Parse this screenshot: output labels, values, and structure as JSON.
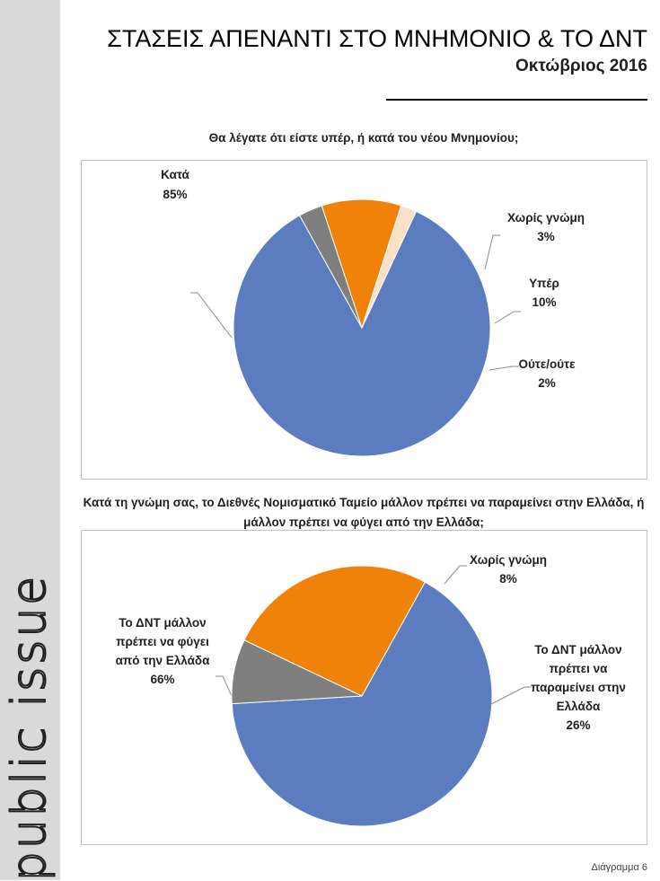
{
  "brand": {
    "text": "public issue"
  },
  "header": {
    "title": "ΣΤΑΣΕΙΣ ΑΠΕΝΑΝΤΙ ΣΤΟ ΜΝΗΜΟΝΙΟ & ΤΟ ΔΝΤ",
    "subtitle": "Οκτώβριος 2016"
  },
  "footer": {
    "text": "Διάγραμμα 6"
  },
  "chart_data": [
    {
      "type": "pie",
      "title": "Θα λέγατε ότι είστε υπέρ, ή κατά του νέου Μνημονίου;",
      "slices": [
        {
          "label": "Κατά",
          "value": 85,
          "display": "85%",
          "color": "#5b7cbe"
        },
        {
          "label": "Χωρίς γνώμη",
          "value": 3,
          "display": "3%",
          "color": "#7f7f7f"
        },
        {
          "label": "Υπέρ",
          "value": 10,
          "display": "10%",
          "color": "#f0820a"
        },
        {
          "label": "Ούτε/ούτε",
          "value": 2,
          "display": "2%",
          "color": "#fbe0c9"
        }
      ]
    },
    {
      "type": "pie",
      "title": "Κατά τη γνώμη σας, το Διεθνές Νομισματικό Ταμείο μάλλον πρέπει να παραμείνει στην Ελλάδα, ή μάλλον πρέπει να φύγει από την Ελλάδα;",
      "slices": [
        {
          "label": "Το ΔΝΤ μάλλον πρέπει να φύγει από την Ελλάδα",
          "value": 66,
          "display": "66%",
          "color": "#5b7cbe"
        },
        {
          "label": "Χωρίς γνώμη",
          "value": 8,
          "display": "8%",
          "color": "#7f7f7f"
        },
        {
          "label": "Το ΔΝΤ μάλλον πρέπει να παραμείνει στην Ελλάδα",
          "value": 26,
          "display": "26%",
          "color": "#f0820a"
        }
      ]
    }
  ]
}
